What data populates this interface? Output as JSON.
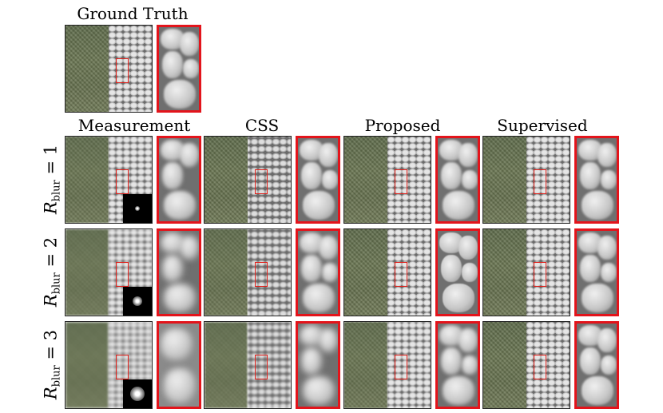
{
  "header": {
    "ground_truth": "Ground Truth"
  },
  "columns": [
    "Measurement",
    "CSS",
    "Proposed",
    "Supervised"
  ],
  "rows": [
    {
      "symbol": "R",
      "subscript": "blur",
      "relation": "= 1"
    },
    {
      "symbol": "R",
      "subscript": "blur",
      "relation": "= 2"
    },
    {
      "symbol": "R",
      "subscript": "blur",
      "relation": "= 3"
    }
  ],
  "colors": {
    "roi_box": "#e0201a",
    "zoom_border": "#e3141b"
  }
}
